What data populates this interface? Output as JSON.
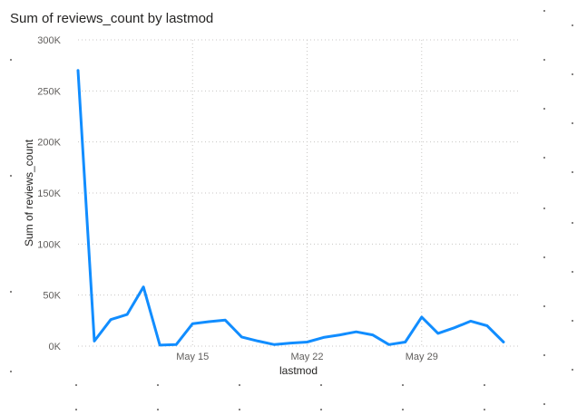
{
  "chart_data": {
    "type": "line",
    "title": "Sum of reviews_count by lastmod",
    "xlabel": "lastmod",
    "ylabel": "Sum of reviews_count",
    "ylim": [
      0,
      300000
    ],
    "y_ticks": [
      "0K",
      "50K",
      "100K",
      "150K",
      "200K",
      "250K",
      "300K"
    ],
    "x_ticks": [
      {
        "date": "2023-05-15",
        "label": "May 15"
      },
      {
        "date": "2023-05-22",
        "label": "May 22"
      },
      {
        "date": "2023-05-29",
        "label": "May 29"
      }
    ],
    "x_range": [
      "2023-05-08",
      "2023-06-04"
    ],
    "grid": true,
    "color": "#118DFF",
    "series": [
      {
        "points": [
          {
            "x": "2023-05-08",
            "y": 270000
          },
          {
            "x": "2023-05-09",
            "y": 5000
          },
          {
            "x": "2023-05-10",
            "y": 26000
          },
          {
            "x": "2023-05-11",
            "y": 31000
          },
          {
            "x": "2023-05-12",
            "y": 58000
          },
          {
            "x": "2023-05-13",
            "y": 1000
          },
          {
            "x": "2023-05-14",
            "y": 1500
          },
          {
            "x": "2023-05-15",
            "y": 22000
          },
          {
            "x": "2023-05-16",
            "y": 24000
          },
          {
            "x": "2023-05-17",
            "y": 25500
          },
          {
            "x": "2023-05-18",
            "y": 9000
          },
          {
            "x": "2023-05-19",
            "y": 5000
          },
          {
            "x": "2023-05-20",
            "y": 1500
          },
          {
            "x": "2023-05-21",
            "y": 3000
          },
          {
            "x": "2023-05-22",
            "y": 4000
          },
          {
            "x": "2023-05-23",
            "y": 8500
          },
          {
            "x": "2023-05-24",
            "y": 11000
          },
          {
            "x": "2023-05-25",
            "y": 14000
          },
          {
            "x": "2023-05-26",
            "y": 11000
          },
          {
            "x": "2023-05-27",
            "y": 1500
          },
          {
            "x": "2023-05-28",
            "y": 4000
          },
          {
            "x": "2023-05-29",
            "y": 28500
          },
          {
            "x": "2023-05-30",
            "y": 12500
          },
          {
            "x": "2023-05-31",
            "y": 18000
          },
          {
            "x": "2023-06-01",
            "y": 24500
          },
          {
            "x": "2023-06-02",
            "y": 20000
          },
          {
            "x": "2023-06-03",
            "y": 4000
          }
        ]
      }
    ]
  }
}
